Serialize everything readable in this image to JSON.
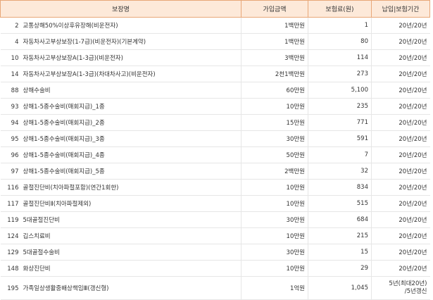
{
  "table": {
    "headers": [
      "보장명",
      "가입금액",
      "보험료(원)",
      "납입|보험기간"
    ],
    "rows": [
      {
        "no": "2",
        "name": "교통상해50%이상후유장해(비운전자)",
        "amount": "1백만원",
        "premium": "1",
        "period": "20년/20년"
      },
      {
        "no": "4",
        "name": "자동차사고부상보장(1-7급)(비운전자)(기본계약)",
        "amount": "1백만원",
        "premium": "80",
        "period": "20년/20년"
      },
      {
        "no": "10",
        "name": "자동차사고부상보장A(1-3급)(비운전자)",
        "amount": "3백만원",
        "premium": "114",
        "period": "20년/20년"
      },
      {
        "no": "14",
        "name": "자동차사고부상보장A(1-3급)(차대차사고)(비운전자)",
        "amount": "2천1백만원",
        "premium": "273",
        "period": "20년/20년"
      },
      {
        "no": "88",
        "name": "상해수술비",
        "amount": "60만원",
        "premium": "5,100",
        "period": "20년/20년"
      },
      {
        "no": "93",
        "name": "상해1-5종수술비(매회지급)_1종",
        "amount": "10만원",
        "premium": "235",
        "period": "20년/20년"
      },
      {
        "no": "94",
        "name": "상해1-5종수술비(매회지급)_2종",
        "amount": "15만원",
        "premium": "771",
        "period": "20년/20년"
      },
      {
        "no": "95",
        "name": "상해1-5종수술비(매회지급)_3종",
        "amount": "30만원",
        "premium": "591",
        "period": "20년/20년"
      },
      {
        "no": "96",
        "name": "상해1-5종수술비(매회지급)_4종",
        "amount": "50만원",
        "premium": "7",
        "period": "20년/20년"
      },
      {
        "no": "97",
        "name": "상해1-5종수술비(매회지급)_5종",
        "amount": "2백만원",
        "premium": "32",
        "period": "20년/20년"
      },
      {
        "no": "116",
        "name": "골절진단비(치아파절포함)(연간1회한)",
        "amount": "10만원",
        "premium": "834",
        "period": "20년/20년"
      },
      {
        "no": "117",
        "name": "골절진단비Ⅱ(치아파절제외)",
        "amount": "10만원",
        "premium": "515",
        "period": "20년/20년"
      },
      {
        "no": "119",
        "name": "5대골절진단비",
        "amount": "30만원",
        "premium": "684",
        "period": "20년/20년"
      },
      {
        "no": "124",
        "name": "깁스치료비",
        "amount": "10만원",
        "premium": "215",
        "period": "20년/20년"
      },
      {
        "no": "129",
        "name": "5대골절수술비",
        "amount": "30만원",
        "premium": "15",
        "period": "20년/20년"
      },
      {
        "no": "148",
        "name": "화상진단비",
        "amount": "10만원",
        "premium": "29",
        "period": "20년/20년"
      },
      {
        "no": "195",
        "name": "가족일상생활중배상책임Ⅲ(갱신형)",
        "amount": "1억원",
        "premium": "1,045",
        "period": [
          "5년(최대20년)",
          "/5년갱신"
        ]
      }
    ]
  }
}
